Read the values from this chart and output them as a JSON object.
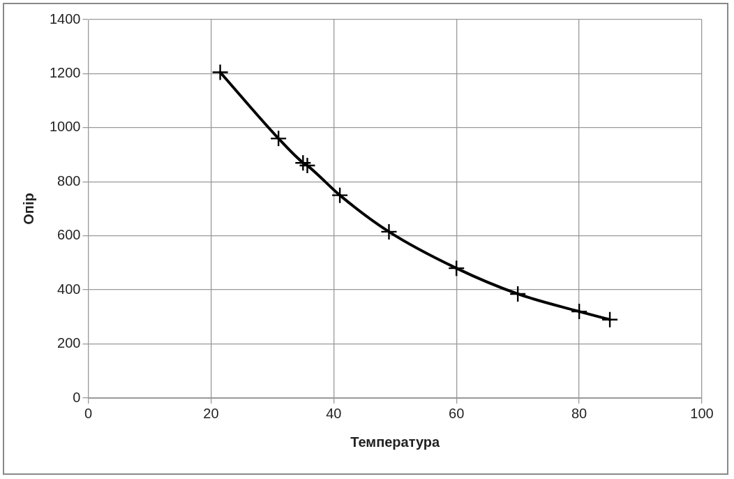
{
  "chart_data": {
    "type": "line",
    "xlabel": "Температура",
    "ylabel": "Опір",
    "series": [
      {
        "color": "#000000",
        "x": [
          21.5,
          31,
          35,
          35.7,
          41,
          49,
          60,
          70,
          80,
          85
        ],
        "values": [
          1205,
          960,
          870,
          860,
          750,
          615,
          480,
          385,
          320,
          290
        ]
      }
    ],
    "xlim": [
      0,
      100
    ],
    "xticks": [
      0,
      20,
      40,
      60,
      80,
      100
    ],
    "ylim": [
      0,
      1400
    ],
    "yticks": [
      0,
      200,
      400,
      600,
      800,
      1000,
      1200,
      1400
    ],
    "grid": true,
    "legend": false,
    "marker": "cross",
    "line_style": "solid"
  }
}
